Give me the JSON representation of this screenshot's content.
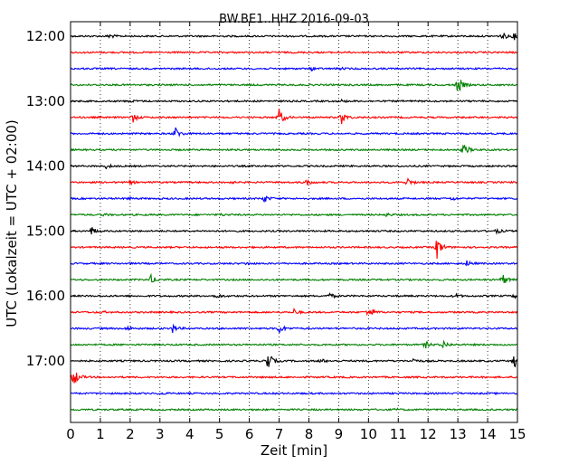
{
  "chart_data": {
    "type": "line",
    "title": "BW.BE1..HHZ 2016-09-03",
    "xlabel": "Zeit  [min]",
    "ylabel": "UTC (Lokalzeit = UTC + 02:00)",
    "xlim": [
      0,
      15
    ],
    "x_ticks": [
      0,
      1,
      2,
      3,
      4,
      5,
      6,
      7,
      8,
      9,
      10,
      11,
      12,
      13,
      14,
      15
    ],
    "y_tick_labels": [
      "12:00",
      "13:00",
      "14:00",
      "15:00",
      "16:00",
      "17:00"
    ],
    "grid": "vertical-dotted",
    "colors": [
      "#000000",
      "#ff0000",
      "#0000ff",
      "#008000"
    ],
    "series": [
      {
        "start": "12:00",
        "color": "#000000",
        "events": [
          [
            1.3,
            0.3
          ],
          [
            14.5,
            0.5
          ],
          [
            14.9,
            0.45
          ]
        ]
      },
      {
        "start": "12:15",
        "color": "#ff0000",
        "events": []
      },
      {
        "start": "12:30",
        "color": "#0000ff",
        "events": [
          [
            8.1,
            0.2
          ],
          [
            9.0,
            0.15
          ]
        ]
      },
      {
        "start": "12:45",
        "color": "#008000",
        "events": [
          [
            13.0,
            1.35
          ]
        ]
      },
      {
        "start": "13:00",
        "color": "#000000",
        "events": [
          [
            2.0,
            0.15
          ],
          [
            9.1,
            0.15
          ]
        ]
      },
      {
        "start": "13:15",
        "color": "#ff0000",
        "events": [
          [
            2.1,
            0.6
          ],
          [
            7.0,
            1.2
          ],
          [
            9.1,
            0.9
          ]
        ]
      },
      {
        "start": "13:30",
        "color": "#0000ff",
        "events": [
          [
            3.5,
            1.0
          ]
        ]
      },
      {
        "start": "13:45",
        "color": "#008000",
        "events": [
          [
            13.2,
            0.9
          ]
        ]
      },
      {
        "start": "14:00",
        "color": "#000000",
        "events": [
          [
            1.2,
            0.3
          ]
        ]
      },
      {
        "start": "14:15",
        "color": "#ff0000",
        "events": [
          [
            2.0,
            0.2
          ],
          [
            5.3,
            0.2
          ],
          [
            7.9,
            0.5
          ],
          [
            11.3,
            0.6
          ]
        ]
      },
      {
        "start": "14:30",
        "color": "#0000ff",
        "events": [
          [
            1.9,
            0.15
          ],
          [
            6.5,
            0.5
          ],
          [
            12.8,
            0.25
          ]
        ]
      },
      {
        "start": "14:45",
        "color": "#008000",
        "events": [
          [
            1.1,
            0.15
          ],
          [
            5.0,
            0.15
          ],
          [
            10.6,
            0.2
          ]
        ]
      },
      {
        "start": "15:00",
        "color": "#000000",
        "events": [
          [
            0.7,
            0.6
          ],
          [
            14.3,
            0.3
          ]
        ]
      },
      {
        "start": "15:15",
        "color": "#ff0000",
        "events": [
          [
            12.3,
            1.6
          ]
        ]
      },
      {
        "start": "15:30",
        "color": "#0000ff",
        "events": [
          [
            5.9,
            0.15
          ],
          [
            13.3,
            0.4
          ]
        ]
      },
      {
        "start": "15:45",
        "color": "#008000",
        "events": [
          [
            2.7,
            0.6
          ],
          [
            14.5,
            0.8
          ]
        ]
      },
      {
        "start": "16:00",
        "color": "#000000",
        "events": [
          [
            4.9,
            0.3
          ],
          [
            8.7,
            0.35
          ],
          [
            12.9,
            0.3
          ],
          [
            14.9,
            0.3
          ]
        ]
      },
      {
        "start": "16:15",
        "color": "#ff0000",
        "events": [
          [
            1.0,
            0.15
          ],
          [
            7.5,
            0.4
          ],
          [
            10.0,
            1.0
          ]
        ]
      },
      {
        "start": "16:30",
        "color": "#0000ff",
        "events": [
          [
            1.9,
            0.3
          ],
          [
            3.4,
            0.7
          ],
          [
            7.0,
            0.7
          ]
        ]
      },
      {
        "start": "16:45",
        "color": "#008000",
        "events": [
          [
            11.9,
            0.5
          ],
          [
            12.5,
            0.6
          ]
        ]
      },
      {
        "start": "17:00",
        "color": "#000000",
        "events": [
          [
            6.6,
            1.6
          ],
          [
            8.4,
            0.3
          ],
          [
            11.5,
            0.3
          ],
          [
            14.9,
            1.0
          ]
        ]
      },
      {
        "start": "17:15",
        "color": "#ff0000",
        "events": [
          [
            0.1,
            1.4
          ]
        ]
      },
      {
        "start": "17:30",
        "color": "#0000ff",
        "events": [
          [
            3.0,
            0.15
          ]
        ]
      },
      {
        "start": "17:45",
        "color": "#008000",
        "events": [
          [
            10.9,
            0.15
          ]
        ]
      }
    ]
  }
}
